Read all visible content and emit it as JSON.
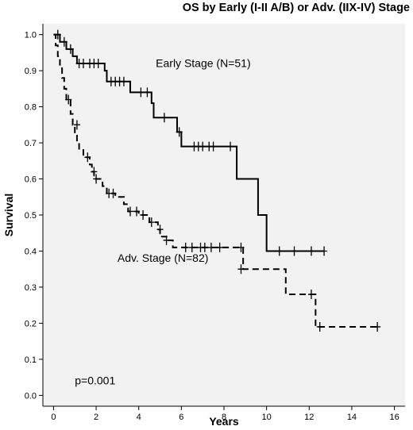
{
  "chart_data": {
    "type": "line",
    "title": "OS by Early (I-II A/B) or Adv. (IIX-IV) Stage",
    "xlabel": "Years",
    "ylabel": "Survival",
    "xlim": [
      -0.5,
      16.5
    ],
    "ylim": [
      -0.03,
      1.03
    ],
    "xticks": [
      0,
      2,
      4,
      6,
      8,
      10,
      12,
      14,
      16
    ],
    "yticks": [
      0.0,
      0.1,
      0.2,
      0.3,
      0.4,
      0.5,
      0.6,
      0.7,
      0.8,
      0.9,
      1.0
    ],
    "ytick_labels": [
      "0.0",
      "0.1",
      "0.2",
      "0.3",
      "0.4",
      "0.5",
      "0.6",
      "0.7",
      "0.8",
      "0.9",
      "1.0"
    ],
    "grid": false,
    "background": "#f2f2f2",
    "annotations": [
      {
        "text": "Early Stage (N=51)",
        "x": 4.8,
        "y": 0.91
      },
      {
        "text": "Adv. Stage (N=82)",
        "x": 3.0,
        "y": 0.37
      },
      {
        "text": "p=0.001",
        "x": 1.0,
        "y": 0.03
      }
    ],
    "series": [
      {
        "name": "Early Stage (N=51)",
        "style": "solid",
        "color": "#000000",
        "steps": [
          [
            0,
            1.0
          ],
          [
            0.3,
            0.98
          ],
          [
            0.6,
            0.96
          ],
          [
            0.9,
            0.94
          ],
          [
            1.1,
            0.92
          ],
          [
            2.4,
            0.9
          ],
          [
            2.5,
            0.87
          ],
          [
            3.6,
            0.84
          ],
          [
            4.6,
            0.81
          ],
          [
            4.7,
            0.77
          ],
          [
            5.8,
            0.73
          ],
          [
            6.0,
            0.69
          ],
          [
            8.6,
            0.6
          ],
          [
            9.6,
            0.5
          ],
          [
            10.0,
            0.4
          ],
          [
            12.7,
            0.4
          ]
        ],
        "censored": [
          [
            0.2,
            1.0
          ],
          [
            0.5,
            0.98
          ],
          [
            0.8,
            0.96
          ],
          [
            1.2,
            0.92
          ],
          [
            1.4,
            0.92
          ],
          [
            1.7,
            0.92
          ],
          [
            1.9,
            0.92
          ],
          [
            2.1,
            0.92
          ],
          [
            2.7,
            0.87
          ],
          [
            2.9,
            0.87
          ],
          [
            3.1,
            0.87
          ],
          [
            3.3,
            0.87
          ],
          [
            4.1,
            0.84
          ],
          [
            4.4,
            0.84
          ],
          [
            5.2,
            0.77
          ],
          [
            5.9,
            0.73
          ],
          [
            6.6,
            0.69
          ],
          [
            6.8,
            0.69
          ],
          [
            7.0,
            0.69
          ],
          [
            7.3,
            0.69
          ],
          [
            7.5,
            0.69
          ],
          [
            8.3,
            0.69
          ],
          [
            10.6,
            0.4
          ],
          [
            11.3,
            0.4
          ],
          [
            12.1,
            0.4
          ],
          [
            12.7,
            0.4
          ]
        ]
      },
      {
        "name": "Adv. Stage (N=82)",
        "style": "dashed",
        "color": "#000000",
        "steps": [
          [
            0,
            1.0
          ],
          [
            0.1,
            0.97
          ],
          [
            0.2,
            0.94
          ],
          [
            0.3,
            0.91
          ],
          [
            0.4,
            0.88
          ],
          [
            0.5,
            0.85
          ],
          [
            0.6,
            0.82
          ],
          [
            0.8,
            0.78
          ],
          [
            0.9,
            0.75
          ],
          [
            1.0,
            0.72
          ],
          [
            1.1,
            0.7
          ],
          [
            1.2,
            0.68
          ],
          [
            1.4,
            0.66
          ],
          [
            1.7,
            0.64
          ],
          [
            1.8,
            0.62
          ],
          [
            1.9,
            0.6
          ],
          [
            2.3,
            0.58
          ],
          [
            2.5,
            0.56
          ],
          [
            2.9,
            0.55
          ],
          [
            3.3,
            0.53
          ],
          [
            3.5,
            0.51
          ],
          [
            4.0,
            0.5
          ],
          [
            4.5,
            0.48
          ],
          [
            4.9,
            0.46
          ],
          [
            5.0,
            0.44
          ],
          [
            5.3,
            0.43
          ],
          [
            5.6,
            0.41
          ],
          [
            8.9,
            0.35
          ],
          [
            10.9,
            0.28
          ],
          [
            12.3,
            0.19
          ],
          [
            15.3,
            0.19
          ]
        ],
        "censored": [
          [
            0.7,
            0.82
          ],
          [
            1.1,
            0.75
          ],
          [
            1.6,
            0.66
          ],
          [
            1.9,
            0.62
          ],
          [
            2.0,
            0.6
          ],
          [
            2.6,
            0.56
          ],
          [
            2.8,
            0.56
          ],
          [
            3.6,
            0.51
          ],
          [
            3.9,
            0.51
          ],
          [
            4.2,
            0.5
          ],
          [
            4.6,
            0.48
          ],
          [
            5.0,
            0.46
          ],
          [
            5.3,
            0.43
          ],
          [
            6.2,
            0.41
          ],
          [
            6.5,
            0.41
          ],
          [
            6.9,
            0.41
          ],
          [
            7.1,
            0.41
          ],
          [
            7.4,
            0.41
          ],
          [
            7.8,
            0.41
          ],
          [
            8.8,
            0.41
          ],
          [
            8.8,
            0.35
          ],
          [
            12.1,
            0.28
          ],
          [
            12.5,
            0.19
          ],
          [
            15.2,
            0.19
          ]
        ]
      }
    ]
  }
}
